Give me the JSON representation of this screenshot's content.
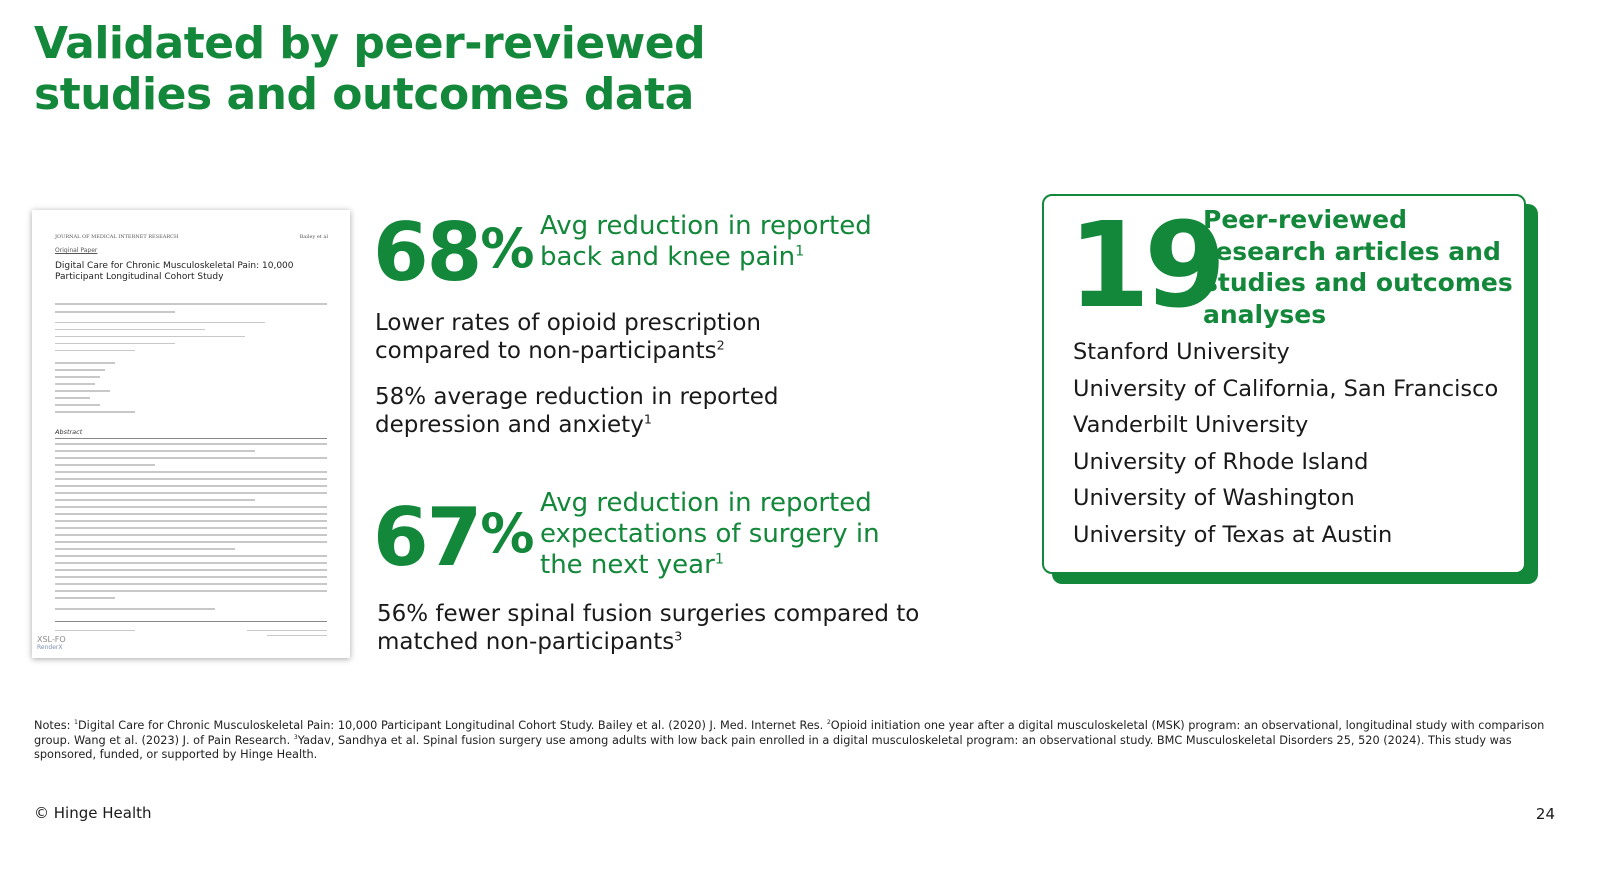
{
  "slide": {
    "title_line1": "Validated by peer-reviewed",
    "title_line2": "studies and outcomes data",
    "page_number": "24",
    "footer": "© Hinge Health"
  },
  "paper": {
    "journal": "JOURNAL OF MEDICAL INTERNET RESEARCH",
    "authors_short": "Bailey et al",
    "type": "Original Paper",
    "title": "Digital Care for Chronic Musculoskeletal Pain: 10,000 Participant Longitudinal Cohort Study",
    "abstract_heading": "Abstract",
    "watermark_line1": "XSL-FO",
    "watermark_line2": "RenderX"
  },
  "stats": {
    "pain": {
      "value": "68",
      "unit": "%",
      "label": "Avg reduction in reported back and knee pain",
      "ref": "1"
    },
    "opioid": {
      "text": "Lower rates of opioid prescription compared to non-participants",
      "ref": "2"
    },
    "depression": {
      "text": "58% average reduction in reported depression and anxiety",
      "ref": "1"
    },
    "surgery": {
      "value": "67",
      "unit": "%",
      "label": "Avg reduction in reported expectations of surgery in the next year",
      "ref": "1"
    },
    "fusion": {
      "text": "56% fewer spinal fusion surgeries compared to matched non-participants",
      "ref": "3"
    }
  },
  "research_card": {
    "count": "19",
    "label": "Peer-reviewed research articles and studies and outcomes analyses",
    "universities": [
      "Stanford University",
      "University of California, San Francisco",
      "Vanderbilt University",
      "University of Rhode Island",
      "University of Washington",
      "University of Texas at Austin"
    ]
  },
  "notes": {
    "prefix": "Notes: ",
    "ref1_mark": "1",
    "ref1_text": "Digital Care for Chronic Musculoskeletal Pain: 10,000 Participant Longitudinal Cohort Study. Bailey et al. (2020) J. Med. Internet Res. ",
    "ref2_mark": "2",
    "ref2_text": "Opioid initiation one year after a digital musculoskeletal (MSK) program: an observational, longitudinal study with comparison group. Wang et al. (2023) J. of Pain Research. ",
    "ref3_mark": "3",
    "ref3_text": "Yadav, Sandhya et al. Spinal fusion surgery use among adults with low back pain enrolled in a digital musculoskeletal program: an observational study. BMC Musculoskeletal Disorders 25, 520 (2024). This study was sponsored, funded, or supported by Hinge Health."
  },
  "colors": {
    "brand_green": "#13873a"
  }
}
